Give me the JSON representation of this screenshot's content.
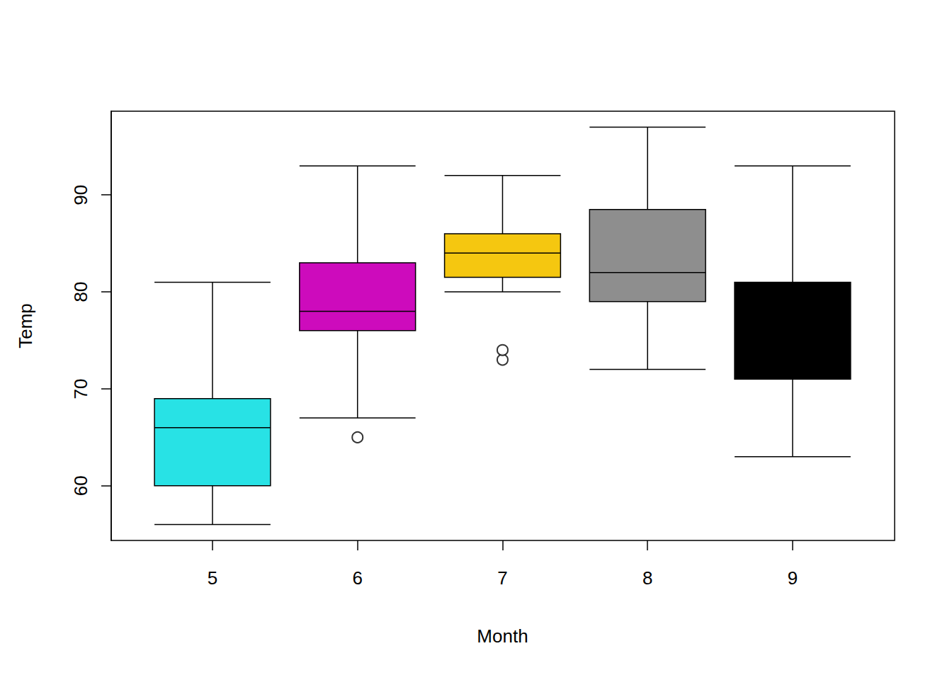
{
  "chart_data": {
    "type": "boxplot",
    "x_label": "Month",
    "y_label": "Temp",
    "categories": [
      "5",
      "6",
      "7",
      "8",
      "9"
    ],
    "boxes": [
      {
        "min": 56,
        "q1": 60,
        "median": 66,
        "q3": 69,
        "max": 81,
        "outliers": []
      },
      {
        "min": 67,
        "q1": 76,
        "median": 78,
        "q3": 83,
        "max": 93,
        "outliers": [
          65
        ]
      },
      {
        "min": 80,
        "q1": 81.5,
        "median": 84,
        "q3": 86,
        "max": 92,
        "outliers": [
          73,
          74
        ]
      },
      {
        "min": 72,
        "q1": 79,
        "median": 82,
        "q3": 88.5,
        "max": 97,
        "outliers": []
      },
      {
        "min": 63,
        "q1": 71,
        "median": 76,
        "q3": 81,
        "max": 93,
        "outliers": []
      }
    ],
    "colors": [
      "#28E2E5",
      "#CD0BBC",
      "#F5C710",
      "#8E8E8E",
      "#000000"
    ],
    "ylim": [
      54.36,
      98.64
    ],
    "yticks": [
      60,
      70,
      80,
      90
    ],
    "grid": false
  }
}
